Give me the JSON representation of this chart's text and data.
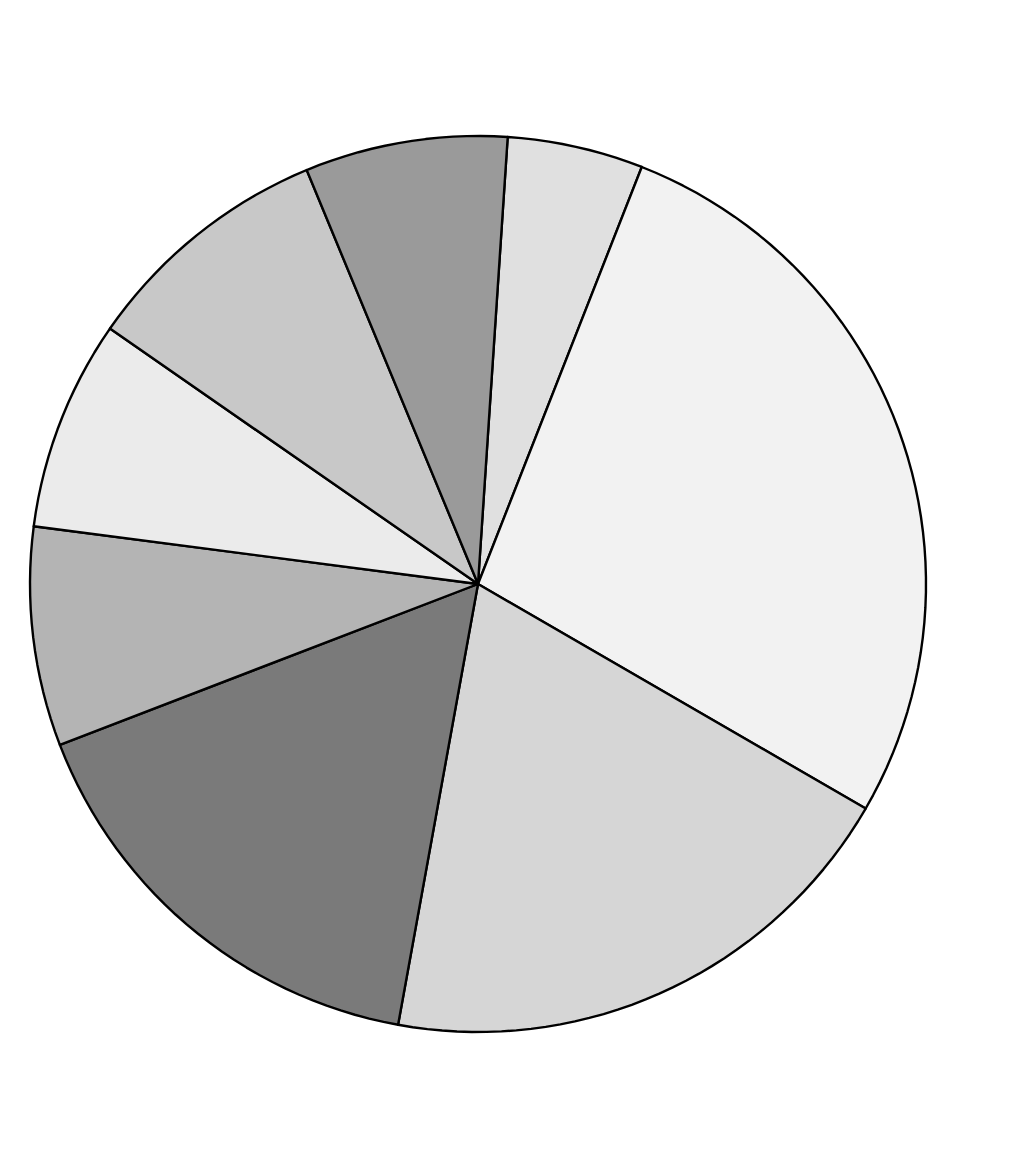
{
  "chart_data": {
    "type": "pie",
    "categories": [
      null,
      null,
      null,
      null,
      null,
      null,
      null,
      null
    ],
    "values": [
      4.9,
      27.4,
      19.5,
      16.3,
      7.9,
      7.6,
      9.1,
      7.3
    ],
    "colors": [
      "#e0e0e0",
      "#f2f2f2",
      "#d6d6d6",
      "#7a7a7a",
      "#b4b4b4",
      "#ebebeb",
      "#c8c8c8",
      "#9a9a9a"
    ]
  }
}
